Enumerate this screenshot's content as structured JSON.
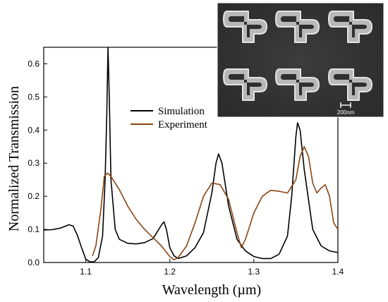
{
  "chart_data": {
    "type": "line",
    "xlabel": "Wavelength (µm)",
    "ylabel": "Normalized Transmission",
    "xlim": [
      1.05,
      1.4
    ],
    "ylim": [
      0,
      0.65
    ],
    "x_ticks": [
      "1.1",
      "1.2",
      "1.3",
      "1.4"
    ],
    "y_ticks": [
      "0.0",
      "0.1",
      "0.2",
      "0.3",
      "0.4",
      "0.5",
      "0.6"
    ],
    "legend_position": "upper-middle",
    "series": [
      {
        "name": "Simulation",
        "color": "#000000",
        "points": [
          [
            1.05,
            0.098
          ],
          [
            1.06,
            0.099
          ],
          [
            1.07,
            0.104
          ],
          [
            1.08,
            0.114
          ],
          [
            1.085,
            0.11
          ],
          [
            1.09,
            0.082
          ],
          [
            1.095,
            0.045
          ],
          [
            1.1,
            0.01
          ],
          [
            1.105,
            0.002
          ],
          [
            1.11,
            0.002
          ],
          [
            1.115,
            0.015
          ],
          [
            1.12,
            0.08
          ],
          [
            1.123,
            0.25
          ],
          [
            1.125,
            0.45
          ],
          [
            1.1265,
            0.65
          ],
          [
            1.128,
            0.5
          ],
          [
            1.13,
            0.25
          ],
          [
            1.135,
            0.1
          ],
          [
            1.14,
            0.07
          ],
          [
            1.15,
            0.058
          ],
          [
            1.16,
            0.056
          ],
          [
            1.17,
            0.06
          ],
          [
            1.18,
            0.072
          ],
          [
            1.19,
            0.113
          ],
          [
            1.193,
            0.123
          ],
          [
            1.196,
            0.1
          ],
          [
            1.2,
            0.045
          ],
          [
            1.205,
            0.02
          ],
          [
            1.21,
            0.012
          ],
          [
            1.22,
            0.02
          ],
          [
            1.23,
            0.045
          ],
          [
            1.24,
            0.09
          ],
          [
            1.25,
            0.21
          ],
          [
            1.255,
            0.3
          ],
          [
            1.258,
            0.328
          ],
          [
            1.262,
            0.3
          ],
          [
            1.27,
            0.17
          ],
          [
            1.28,
            0.07
          ],
          [
            1.29,
            0.035
          ],
          [
            1.3,
            0.018
          ],
          [
            1.31,
            0.012
          ],
          [
            1.32,
            0.012
          ],
          [
            1.33,
            0.025
          ],
          [
            1.34,
            0.08
          ],
          [
            1.345,
            0.2
          ],
          [
            1.35,
            0.38
          ],
          [
            1.352,
            0.422
          ],
          [
            1.355,
            0.4
          ],
          [
            1.36,
            0.28
          ],
          [
            1.37,
            0.1
          ],
          [
            1.38,
            0.05
          ],
          [
            1.39,
            0.035
          ],
          [
            1.4,
            0.03
          ]
        ]
      },
      {
        "name": "Experiment",
        "color": "#8b4513",
        "points": [
          [
            1.108,
            0.02
          ],
          [
            1.112,
            0.05
          ],
          [
            1.118,
            0.16
          ],
          [
            1.122,
            0.26
          ],
          [
            1.126,
            0.27
          ],
          [
            1.13,
            0.26
          ],
          [
            1.14,
            0.22
          ],
          [
            1.15,
            0.17
          ],
          [
            1.16,
            0.13
          ],
          [
            1.17,
            0.1
          ],
          [
            1.18,
            0.075
          ],
          [
            1.19,
            0.05
          ],
          [
            1.2,
            0.018
          ],
          [
            1.205,
            0.008
          ],
          [
            1.21,
            0.015
          ],
          [
            1.22,
            0.05
          ],
          [
            1.23,
            0.12
          ],
          [
            1.24,
            0.2
          ],
          [
            1.25,
            0.24
          ],
          [
            1.26,
            0.235
          ],
          [
            1.27,
            0.19
          ],
          [
            1.28,
            0.09
          ],
          [
            1.285,
            0.045
          ],
          [
            1.29,
            0.07
          ],
          [
            1.3,
            0.15
          ],
          [
            1.31,
            0.2
          ],
          [
            1.32,
            0.218
          ],
          [
            1.33,
            0.215
          ],
          [
            1.34,
            0.21
          ],
          [
            1.35,
            0.25
          ],
          [
            1.355,
            0.32
          ],
          [
            1.36,
            0.35
          ],
          [
            1.365,
            0.32
          ],
          [
            1.37,
            0.24
          ],
          [
            1.375,
            0.21
          ],
          [
            1.38,
            0.225
          ],
          [
            1.385,
            0.235
          ],
          [
            1.39,
            0.2
          ],
          [
            1.395,
            0.12
          ],
          [
            1.4,
            0.1
          ]
        ]
      }
    ]
  },
  "inset": {
    "scale_bar_label": "200nm"
  }
}
